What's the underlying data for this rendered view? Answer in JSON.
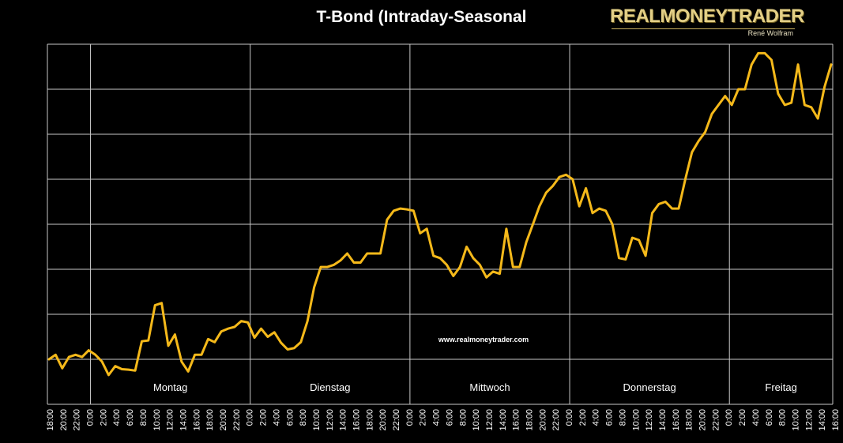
{
  "chart_data": {
    "type": "line",
    "title": "T-Bond (Intraday-Seasonal",
    "xlabel": "",
    "ylabel": "",
    "ytick_labels": false,
    "grid": {
      "horizontal": true,
      "vertical_day_separators": true
    },
    "line_color": "#f5b91a",
    "days": [
      "Montag",
      "Dienstag",
      "Mittwoch",
      "Donnerstag",
      "Freitag"
    ],
    "x_tick_labels": [
      "18:00",
      "20:00",
      "22:00",
      "0:00",
      "2:00",
      "4:00",
      "6:00",
      "8:00",
      "10:00",
      "12:00",
      "14:00",
      "16:00",
      "18:00",
      "20:00",
      "22:00",
      "0:00",
      "2:00",
      "4:00",
      "6:00",
      "8:00",
      "10:00",
      "12:00",
      "14:00",
      "16:00",
      "18:00",
      "20:00",
      "22:00",
      "0:00",
      "2:00",
      "4:00",
      "6:00",
      "8:00",
      "10:00",
      "12:00",
      "14:00",
      "16:00",
      "18:00",
      "20:00",
      "22:00",
      "0:00",
      "2:00",
      "4:00",
      "6:00",
      "8:00",
      "10:00",
      "12:00",
      "14:00",
      "16:00",
      "18:00",
      "20:00",
      "22:00",
      "0:00",
      "2:00",
      "4:00",
      "6:00",
      "8:00",
      "10:00",
      "12:00",
      "14:00",
      "16:00"
    ],
    "ylim": [
      0,
      8
    ],
    "series": [
      {
        "values": [
          1.0,
          1.1,
          0.8,
          1.05,
          1.1,
          1.05,
          1.2,
          1.1,
          0.95,
          0.65,
          0.85,
          0.78,
          0.77,
          0.75,
          1.4,
          1.42,
          2.2,
          2.25,
          1.3,
          1.55,
          0.95,
          0.73,
          1.1,
          1.1,
          1.45,
          1.38,
          1.62,
          1.68,
          1.72,
          1.85,
          1.82,
          1.48,
          1.68,
          1.5,
          1.6,
          1.37,
          1.22,
          1.25,
          1.38,
          1.85,
          2.6,
          3.05,
          3.05,
          3.1,
          3.2,
          3.35,
          3.15,
          3.15,
          3.35,
          3.35,
          3.35,
          4.1,
          4.3,
          4.35,
          4.33,
          4.3,
          3.8,
          3.9,
          3.3,
          3.25,
          3.1,
          2.85,
          3.05,
          3.5,
          3.25,
          3.1,
          2.82,
          2.95,
          2.9,
          3.9,
          3.05,
          3.05,
          3.6,
          4.0,
          4.4,
          4.7,
          4.85,
          5.05,
          5.1,
          5.0,
          4.4,
          4.8,
          4.25,
          4.35,
          4.3,
          4.0,
          3.25,
          3.22,
          3.7,
          3.65,
          3.3,
          4.25,
          4.45,
          4.5,
          4.35,
          4.35,
          5.0,
          5.6,
          5.85,
          6.05,
          6.45,
          6.65,
          6.85,
          6.65,
          7.0,
          7.0,
          7.55,
          7.8,
          7.8,
          7.65,
          6.9,
          6.65,
          6.7,
          7.55,
          6.65,
          6.6,
          6.35,
          7.05,
          7.55
        ]
      }
    ],
    "watermark": "www.realmoneytrader.com"
  },
  "branding": {
    "name": "REALMONEYTRADER",
    "author": "René Wolfram"
  }
}
